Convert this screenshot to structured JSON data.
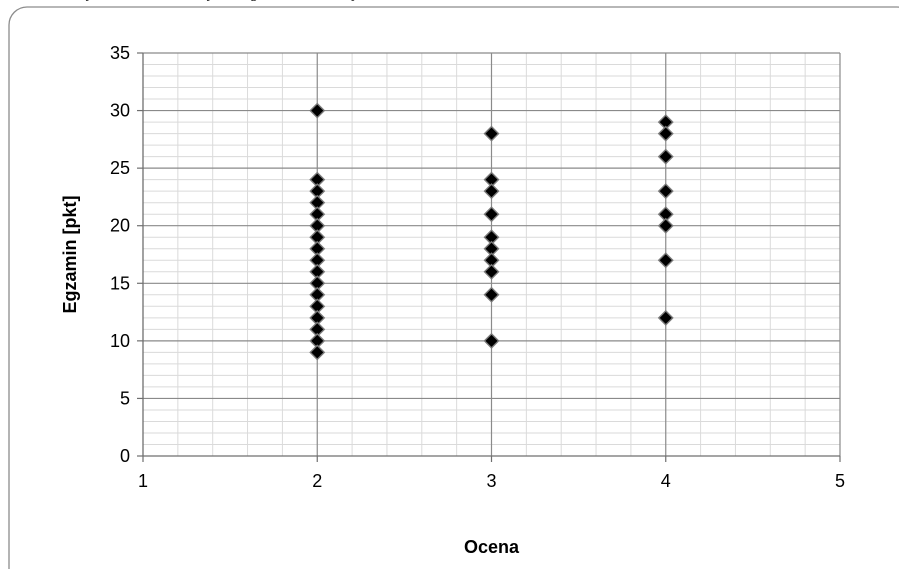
{
  "header": {
    "cropped_text": "… wykresie zależności wyniku egzaminu od oceny …"
  },
  "chart_data": {
    "type": "scatter",
    "title": "",
    "xlabel": "Ocena",
    "ylabel": "Egzamin [pkt]",
    "xlim": [
      1,
      5
    ],
    "ylim": [
      0,
      35
    ],
    "x_ticks": [
      "1",
      "2",
      "3",
      "4",
      "5"
    ],
    "y_ticks": [
      "0",
      "5",
      "10",
      "15",
      "20",
      "25",
      "30",
      "35"
    ],
    "grid": true,
    "legend": "none",
    "marker_color": "#000000",
    "series": [
      {
        "points": [
          [
            2,
            30
          ],
          [
            2,
            24
          ],
          [
            2,
            23
          ],
          [
            2,
            22
          ],
          [
            2,
            21
          ],
          [
            2,
            20
          ],
          [
            2,
            19
          ],
          [
            2,
            18
          ],
          [
            2,
            17
          ],
          [
            2,
            16
          ],
          [
            2,
            15
          ],
          [
            2,
            14
          ],
          [
            2,
            13
          ],
          [
            2,
            12
          ],
          [
            2,
            11
          ],
          [
            2,
            10
          ],
          [
            2,
            9
          ],
          [
            3,
            28
          ],
          [
            3,
            24
          ],
          [
            3,
            23
          ],
          [
            3,
            21
          ],
          [
            3,
            19
          ],
          [
            3,
            18
          ],
          [
            3,
            17
          ],
          [
            3,
            16
          ],
          [
            3,
            14
          ],
          [
            3,
            10
          ],
          [
            4,
            29
          ],
          [
            4,
            28
          ],
          [
            4,
            26
          ],
          [
            4,
            23
          ],
          [
            4,
            21
          ],
          [
            4,
            20
          ],
          [
            4,
            17
          ],
          [
            4,
            12
          ]
        ]
      }
    ]
  }
}
